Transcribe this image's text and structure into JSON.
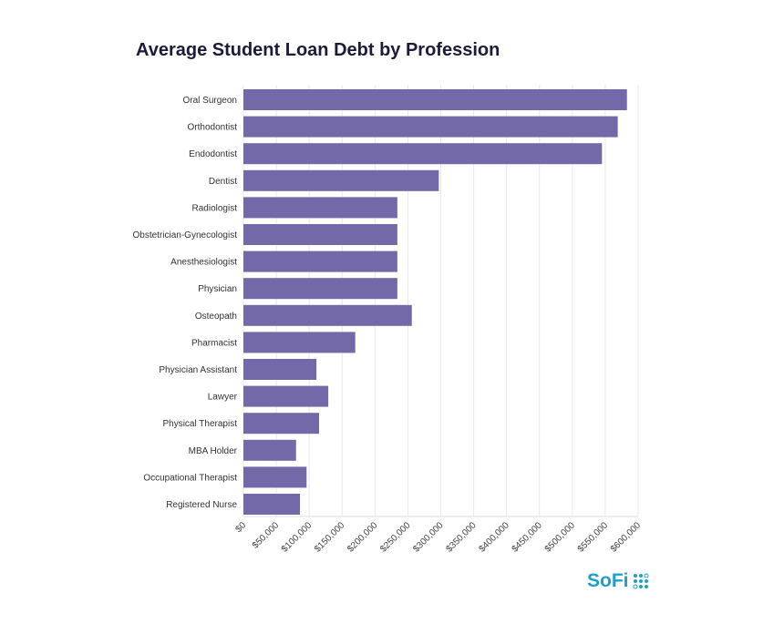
{
  "chart_data": {
    "type": "bar",
    "orientation": "horizontal",
    "title": "Average Student Loan Debt by Profession",
    "xlabel": "",
    "ylabel": "",
    "xlim": [
      0,
      600000
    ],
    "grid": true,
    "bar_color": "#7469a8",
    "categories": [
      "Oral Surgeon",
      "Orthodontist",
      "Endodontist",
      "Dentist",
      "Radiologist",
      "Obstetrician-Gynecologist",
      "Anesthesiologist",
      "Physician",
      "Osteopath",
      "Pharmacist",
      "Physician Assistant",
      "Lawyer",
      "Physical Therapist",
      "MBA Holder",
      "Occupational Therapist",
      "Registered Nurse"
    ],
    "values": [
      583000,
      569000,
      545000,
      297000,
      234000,
      234000,
      234000,
      234000,
      256000,
      170000,
      111000,
      129000,
      115000,
      80000,
      96000,
      86000
    ],
    "ticks": [
      0,
      50000,
      100000,
      150000,
      200000,
      250000,
      300000,
      350000,
      400000,
      450000,
      500000,
      550000,
      600000
    ],
    "tick_labels": [
      "$0",
      "$50,000",
      "$100,000",
      "$150,000",
      "$200,000",
      "$250,000",
      "$300,000",
      "$350,000",
      "$400,000",
      "$450,000",
      "$500,000",
      "$550,000",
      "$600,000"
    ]
  },
  "brand": {
    "logo_text": "SoFi",
    "color": "#1fa0c6"
  }
}
